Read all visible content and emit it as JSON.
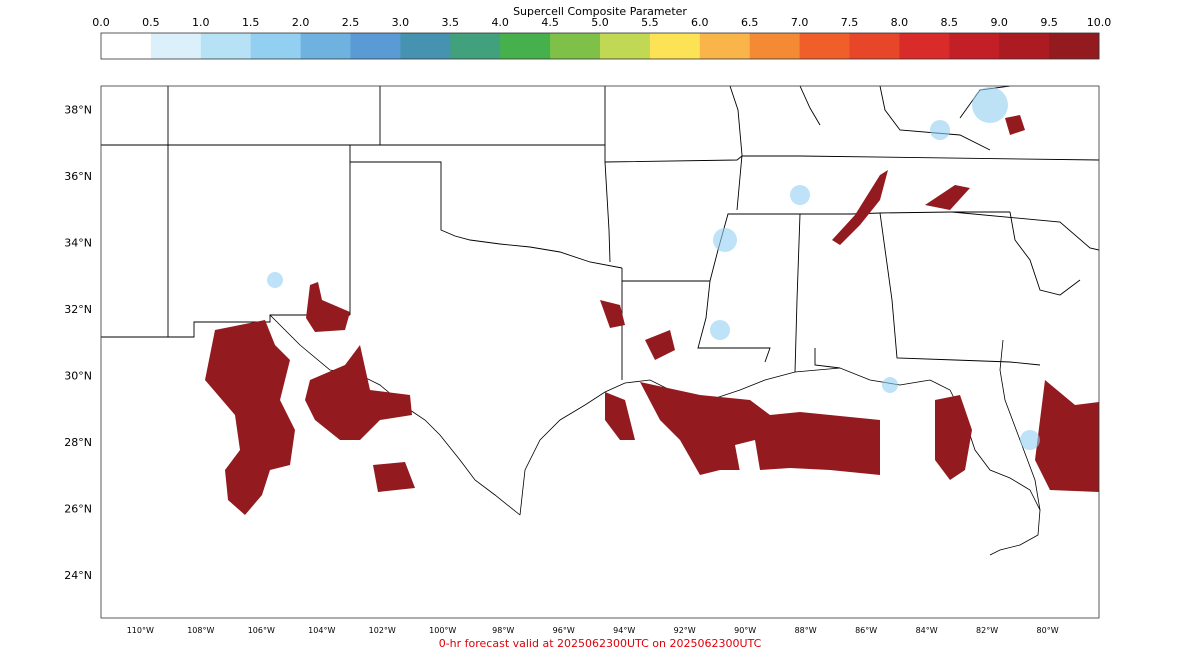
{
  "colorbar": {
    "title": "Supercell Composite Parameter",
    "tick_labels": [
      "0.0",
      "0.5",
      "1.0",
      "1.5",
      "2.0",
      "2.5",
      "3.0",
      "3.5",
      "4.0",
      "4.5",
      "5.0",
      "5.5",
      "6.0",
      "6.5",
      "7.0",
      "7.5",
      "8.0",
      "8.5",
      "9.0",
      "9.5",
      "10.0"
    ],
    "colors": [
      "#ffffff",
      "#dcf0fb",
      "#b7e2f6",
      "#92cff1",
      "#6fb2e0",
      "#5a9bd5",
      "#4593b0",
      "#42a17d",
      "#46b14c",
      "#7fc148",
      "#c0d853",
      "#fce356",
      "#f9b549",
      "#f58a35",
      "#f05f2a",
      "#e74628",
      "#da2b2b",
      "#c21f27",
      "#ac1b22",
      "#931a1e"
    ]
  },
  "map": {
    "lat_labels": [
      "24°N",
      "26°N",
      "28°N",
      "30°N",
      "32°N",
      "34°N",
      "36°N",
      "38°N"
    ],
    "lon_labels": [
      "110°W",
      "108°W",
      "106°W",
      "104°W",
      "102°W",
      "100°W",
      "98°W",
      "96°W",
      "94°W",
      "92°W",
      "90°W",
      "88°W",
      "86°W",
      "84°W",
      "82°W",
      "80°W"
    ],
    "lon_range": [
      -111.3,
      -78.3
    ],
    "lat_range": [
      22.7,
      38.7
    ],
    "field": "Supercell Composite Parameter"
  },
  "footer": {
    "valid_text": "0-hr forecast valid at 2025062300UTC on 2025062300UTC",
    "color": "#e0000a"
  }
}
